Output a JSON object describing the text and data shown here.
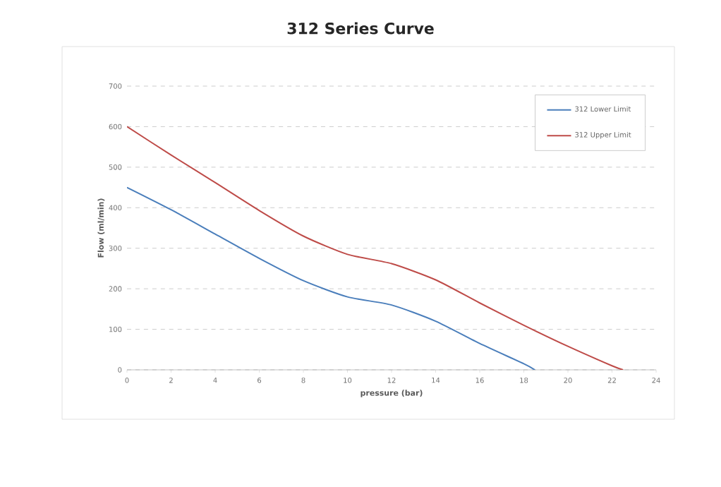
{
  "chart_data": {
    "type": "line",
    "title": "312 Series Curve",
    "xlabel": "pressure (bar)",
    "ylabel": "Flow (ml/min)",
    "xlim": [
      0,
      24
    ],
    "xticks": [
      0,
      2,
      4,
      6,
      8,
      10,
      12,
      14,
      16,
      18,
      20,
      22,
      24
    ],
    "ylim": [
      0,
      700
    ],
    "yticks": [
      0,
      100,
      200,
      300,
      400,
      500,
      600,
      700
    ],
    "grid": "y",
    "legend": "top right",
    "marker": "none",
    "line_style": "solid",
    "series": [
      {
        "name": "312 Lower Limit",
        "color": "#4a7ebb",
        "x": [
          0,
          2,
          4,
          6,
          8,
          10,
          12,
          14,
          16,
          18,
          18.5
        ],
        "values": [
          450,
          395,
          335,
          275,
          220,
          180,
          160,
          120,
          65,
          15,
          0
        ]
      },
      {
        "name": "312 Upper Limit",
        "color": "#be4b48",
        "x": [
          0,
          2,
          4,
          6,
          8,
          10,
          12,
          14,
          16,
          18,
          20,
          22,
          22.5
        ],
        "values": [
          600,
          530,
          462,
          393,
          330,
          285,
          262,
          222,
          165,
          110,
          58,
          10,
          0
        ]
      }
    ]
  }
}
